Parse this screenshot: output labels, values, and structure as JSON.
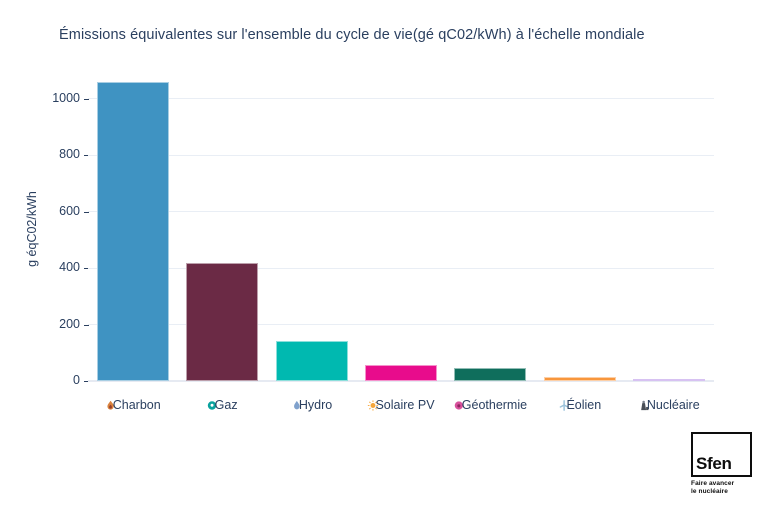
{
  "title": "Émissions équivalentes sur l'ensemble du cycle de vie(gé qC02/kWh) à l'échelle mondiale",
  "colors": {
    "background": "#ffffff",
    "text": "#2a3f5f",
    "gridline": "#e9eef5"
  },
  "chart_data": {
    "type": "bar",
    "title": "Émissions équivalentes sur l'ensemble du cycle de vie(gé qC02/kWh) à l'échelle mondiale",
    "xlabel": "",
    "ylabel": "g éqC02/kWh",
    "ylim": [
      0,
      1101
    ],
    "yticks": [
      0,
      200,
      400,
      600,
      800,
      1000
    ],
    "grid": true,
    "legend": "none",
    "categories": [
      "Charbon",
      "Gaz",
      "Hydro",
      "Solaire PV",
      "Géothermie",
      "Éolien",
      "Nucléaire"
    ],
    "values": [
      1060,
      418,
      140,
      55,
      45,
      15,
      8
    ],
    "bar_colors": [
      "#3f93c2",
      "#6b2a45",
      "#00b9b0",
      "#e80c8c",
      "#0f6e5c",
      "#f8963c",
      "#a678e2"
    ],
    "category_icons": [
      "coal-flame-icon",
      "gas-flame-icon",
      "water-drop-icon",
      "sun-icon",
      "geothermal-icon",
      "wind-turbine-icon",
      "nuclear-plant-icon"
    ],
    "icon_colors": [
      "#d9823e",
      "#0aa29e",
      "#7fa1cc",
      "#f6a63a",
      "#d8519c",
      "#9cc3dc",
      "#4a4f57"
    ]
  },
  "logo": {
    "name": "Sfen",
    "tagline_line1": "Faire avancer",
    "tagline_line2": "le nucléaire"
  }
}
